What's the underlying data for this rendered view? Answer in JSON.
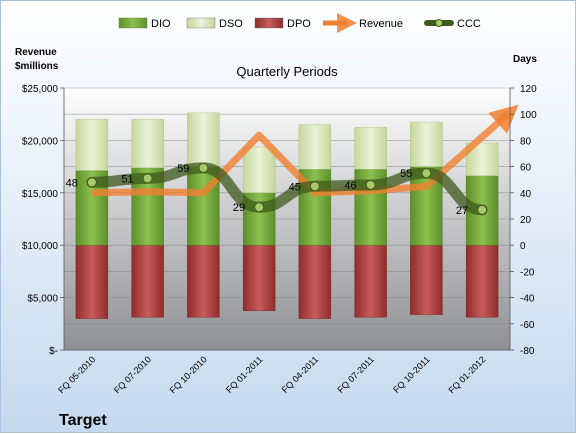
{
  "chart_data": {
    "type": "bar",
    "title": "Quarterly Periods",
    "company": "Target",
    "left_axis_title": [
      "Revenue",
      "$millions"
    ],
    "right_axis_title": "Days",
    "left_ylim": [
      0,
      25000
    ],
    "right_ylim": [
      -80,
      120
    ],
    "left_ticks": [
      {
        "value": 25000,
        "label": "$25,000"
      },
      {
        "value": 20000,
        "label": "$20,000"
      },
      {
        "value": 15000,
        "label": "$15,000"
      },
      {
        "value": 10000,
        "label": "$10,000"
      },
      {
        "value": 5000,
        "label": "$5,000"
      },
      {
        "value": 0,
        "label": "$-"
      }
    ],
    "right_ticks": [
      120,
      100,
      80,
      60,
      40,
      20,
      0,
      -20,
      -40,
      -60,
      -80
    ],
    "categories": [
      "FQ 05-2010",
      "FQ 07-2010",
      "FQ 10-2010",
      "FQ 01-2011",
      "FQ 04-2011",
      "FQ 07-2011",
      "FQ 10-2011",
      "FQ 01-2012"
    ],
    "legend": [
      "DIO",
      "DSO",
      "DPO",
      "Revenue",
      "CCC"
    ],
    "series": [
      {
        "name": "DIO",
        "axis": "right",
        "values": [
          57,
          59,
          60,
          40,
          58,
          58,
          60,
          53
        ],
        "color": "#72a83a"
      },
      {
        "name": "DSO",
        "axis": "right",
        "values": [
          39,
          37,
          41,
          35,
          34,
          32,
          34,
          25
        ],
        "color": "#d7e4b4"
      },
      {
        "name": "DPO",
        "axis": "right",
        "values": [
          -56,
          -55,
          -55,
          -50,
          -56,
          -55,
          -53,
          -55
        ],
        "color": "#b84a4a"
      },
      {
        "name": "Revenue",
        "axis": "left",
        "values": [
          15000,
          15100,
          15000,
          20500,
          15000,
          15200,
          15600,
          21000
        ],
        "color": "#f07f2f"
      },
      {
        "name": "CCC",
        "axis": "right",
        "values": [
          48,
          51,
          59,
          29,
          45,
          46,
          55,
          27
        ],
        "labels": [
          "48",
          "51",
          "59",
          "29",
          "45",
          "46",
          "55",
          "27"
        ],
        "color": "#5e7b2c"
      }
    ],
    "grid": true,
    "legend_position": "top"
  }
}
